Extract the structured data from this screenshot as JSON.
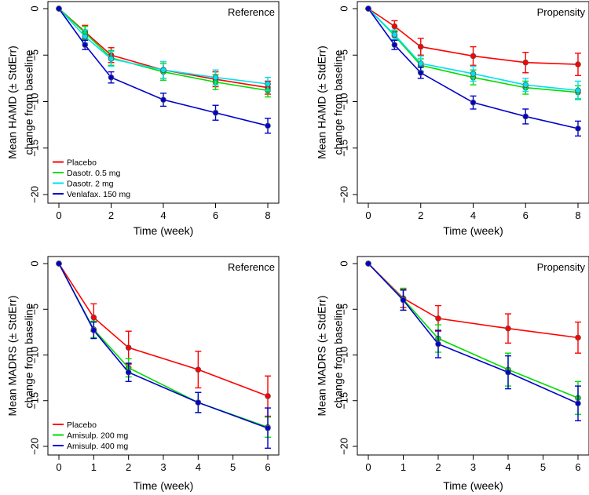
{
  "chart_data": [
    {
      "type": "line",
      "panel_label": "Reference",
      "xlabel": "Time (week)",
      "ylabel_line1": "Mean HAMD (± StdErr)",
      "ylabel_line2": "change from baseline",
      "x": [
        0,
        1,
        2,
        4,
        6,
        8
      ],
      "xlim": [
        0,
        8
      ],
      "ylim": [
        -20,
        0
      ],
      "x_ticks": [
        0,
        2,
        4,
        6,
        8
      ],
      "y_ticks": [
        0,
        -5,
        -10,
        -15,
        -20
      ],
      "legend": "bottom-left",
      "series": [
        {
          "name": "Placebo",
          "color": "#ff0000",
          "values": [
            0,
            -2.5,
            -5.0,
            -6.6,
            -7.6,
            -8.5
          ],
          "errors": [
            0,
            0.7,
            0.8,
            0.9,
            0.8,
            0.7
          ]
        },
        {
          "name": "Dasotr. 0.5 mg",
          "color": "#00dd00",
          "values": [
            0,
            -2.6,
            -5.3,
            -6.8,
            -7.9,
            -8.8
          ],
          "errors": [
            0,
            0.7,
            0.8,
            0.9,
            0.8,
            0.7
          ]
        },
        {
          "name": "Dasotr. 2 mg",
          "color": "#00e0f0",
          "values": [
            0,
            -3.0,
            -5.4,
            -6.6,
            -7.4,
            -8.1
          ],
          "errors": [
            0,
            0.7,
            0.8,
            0.9,
            0.8,
            0.7
          ]
        },
        {
          "name": "Venlafax. 150 mg",
          "color": "#0000cc",
          "values": [
            0,
            -3.9,
            -7.4,
            -9.8,
            -11.2,
            -12.6
          ],
          "errors": [
            0,
            0.5,
            0.6,
            0.7,
            0.8,
            0.8
          ]
        }
      ]
    },
    {
      "type": "line",
      "panel_label": "Propensity",
      "xlabel": "Time (week)",
      "ylabel_line1": "Mean HAMD (± StdErr)",
      "ylabel_line2": "change from baseline",
      "x": [
        0,
        1,
        2,
        4,
        6,
        8
      ],
      "xlim": [
        0,
        8
      ],
      "ylim": [
        -20,
        0
      ],
      "x_ticks": [
        0,
        2,
        4,
        6,
        8
      ],
      "y_ticks": [
        0,
        -5,
        -10,
        -15,
        -20
      ],
      "legend": "none",
      "series": [
        {
          "name": "Placebo",
          "color": "#ff0000",
          "values": [
            0,
            -1.9,
            -4.1,
            -5.1,
            -5.8,
            -6.0
          ],
          "errors": [
            0,
            0.6,
            0.9,
            1.0,
            1.1,
            1.2
          ]
        },
        {
          "name": "Dasotr. 0.5 mg",
          "color": "#00dd00",
          "values": [
            0,
            -2.9,
            -6.1,
            -7.4,
            -8.5,
            -9.0
          ],
          "errors": [
            0,
            0.5,
            0.7,
            0.8,
            0.7,
            0.7
          ]
        },
        {
          "name": "Dasotr. 2 mg",
          "color": "#00e0f0",
          "values": [
            0,
            -2.8,
            -5.9,
            -7.0,
            -8.2,
            -8.8
          ],
          "errors": [
            0,
            0.5,
            0.8,
            0.8,
            0.7,
            1.0
          ]
        },
        {
          "name": "Venlafax. 150 mg",
          "color": "#0000cc",
          "values": [
            0,
            -3.9,
            -6.9,
            -10.1,
            -11.6,
            -12.9
          ],
          "errors": [
            0,
            0.5,
            0.6,
            0.7,
            0.8,
            0.8
          ]
        }
      ]
    },
    {
      "type": "line",
      "panel_label": "Reference",
      "xlabel": "Time (week)",
      "ylabel_line1": "Mean MADRS (± StdErr)",
      "ylabel_line2": "change from baseline",
      "x": [
        0,
        1,
        2,
        4,
        6
      ],
      "xlim": [
        0,
        6
      ],
      "ylim": [
        -20,
        0
      ],
      "x_ticks": [
        0,
        1,
        2,
        3,
        4,
        5,
        6
      ],
      "y_ticks": [
        0,
        -5,
        -10,
        -15,
        -20
      ],
      "legend": "bottom-left",
      "series": [
        {
          "name": "Placebo",
          "color": "#ff0000",
          "values": [
            0,
            -5.9,
            -9.2,
            -11.6,
            -14.5
          ],
          "errors": [
            0,
            1.5,
            1.8,
            2.0,
            2.2
          ]
        },
        {
          "name": "Amisulp. 200 mg",
          "color": "#00dd00",
          "values": [
            0,
            -7.2,
            -11.4,
            -15.2,
            -17.9
          ],
          "errors": [
            0,
            0.9,
            1.0,
            1.1,
            1.1
          ]
        },
        {
          "name": "Amisulp. 400 mg",
          "color": "#0000cc",
          "values": [
            0,
            -7.3,
            -11.9,
            -15.2,
            -18.0
          ],
          "errors": [
            0,
            0.9,
            1.0,
            1.1,
            2.2
          ]
        }
      ]
    },
    {
      "type": "line",
      "panel_label": "Propensity",
      "xlabel": "Time (week)",
      "ylabel_line1": "Mean MADRS (± StdErr)",
      "ylabel_line2": "change from baseline",
      "x": [
        0,
        1,
        2,
        4,
        6
      ],
      "xlim": [
        0,
        6
      ],
      "ylim": [
        -20,
        0
      ],
      "x_ticks": [
        0,
        1,
        2,
        3,
        4,
        5,
        6
      ],
      "y_ticks": [
        0,
        -5,
        -10,
        -15,
        -20
      ],
      "legend": "none",
      "series": [
        {
          "name": "Placebo",
          "color": "#ff0000",
          "values": [
            0,
            -3.8,
            -6.0,
            -7.1,
            -8.1
          ],
          "errors": [
            0,
            1.0,
            1.4,
            1.6,
            1.7
          ]
        },
        {
          "name": "Amisulp. 200 mg",
          "color": "#00dd00",
          "values": [
            0,
            -3.9,
            -8.2,
            -11.6,
            -14.7
          ],
          "errors": [
            0,
            1.2,
            1.5,
            1.8,
            1.8
          ]
        },
        {
          "name": "Amisulp. 400 mg",
          "color": "#0000cc",
          "values": [
            0,
            -4.0,
            -8.8,
            -11.9,
            -15.3
          ],
          "errors": [
            0,
            1.1,
            1.5,
            1.8,
            1.9
          ]
        }
      ]
    }
  ]
}
